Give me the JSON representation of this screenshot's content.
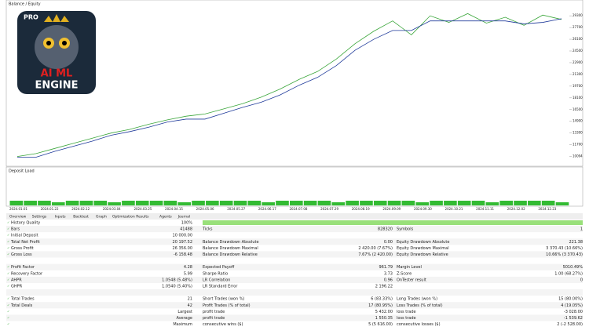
{
  "header": {
    "title": "Balance / Equity"
  },
  "logo": {
    "badge": "PRO",
    "line1": "AI ML",
    "line2": "ENGINE"
  },
  "chart": {
    "ylim": [
      9200,
      30600
    ],
    "yticks": [
      10094,
      11700,
      13300,
      14900,
      16500,
      18100,
      19700,
      21300,
      22900,
      24500,
      26100,
      27700,
      29300
    ],
    "balance": [
      10000,
      10000,
      10800,
      11500,
      12200,
      13000,
      13500,
      14100,
      14800,
      15200,
      15200,
      16000,
      16800,
      17500,
      18500,
      19800,
      20900,
      22500,
      24600,
      26100,
      27300,
      27300,
      28600,
      28600,
      28600,
      28600,
      28600,
      28200,
      28400,
      28900
    ],
    "equity": [
      10100,
      10500,
      11200,
      11900,
      12600,
      13300,
      13800,
      14500,
      15100,
      15600,
      15900,
      16600,
      17300,
      18200,
      19300,
      20600,
      21700,
      23400,
      25500,
      27200,
      28600,
      26700,
      29300,
      28400,
      29600,
      28300,
      29100,
      28000,
      29400,
      28800
    ],
    "deposit_load_title": "Deposit Load",
    "deposit_load": [
      3,
      3,
      3,
      2,
      3,
      3,
      3,
      2,
      3,
      3,
      3,
      3,
      2,
      3,
      3,
      3,
      3,
      3,
      2,
      3,
      3,
      3,
      3,
      2,
      3,
      3,
      3,
      3,
      3,
      2,
      3,
      3,
      3,
      3,
      2,
      3,
      3,
      3,
      3,
      2
    ],
    "dates": [
      "2024.01.01",
      "2024.01.22",
      "2024.02.12",
      "2024.03.04",
      "2024.03.25",
      "2024.04.15",
      "2024.05.06",
      "2024.05.27",
      "2024.06.17",
      "2024.07.08",
      "2024.07.29",
      "2024.08.19",
      "2024.09.09",
      "2024.09.30",
      "2024.10.21",
      "2024.11.11",
      "2024.12.02",
      "2024.12.23"
    ]
  },
  "tabs": [
    "Overview",
    "Settings",
    "Inputs",
    "Backtest",
    "Graph",
    "Optimization Results",
    "Agents",
    "Journal"
  ],
  "table": {
    "rows": [
      [
        "History Quality",
        "100%",
        "",
        "",
        "",
        ""
      ],
      [
        "Bars",
        "41488",
        "Ticks",
        "828320",
        "Symbols",
        "1"
      ],
      [
        "Initial Deposit",
        "10 000.00",
        "",
        "",
        "",
        ""
      ],
      [
        "Total Net Profit",
        "20 197.52",
        "Balance Drawdown Absolute",
        "0.00",
        "Equity Drawdown Absolute",
        "221.38"
      ],
      [
        "Gross Profit",
        "26 356.00",
        "Balance Drawdown Maximal",
        "2 420.00 (7.67%)",
        "Equity Drawdown Maximal",
        "3 370.43 (10.66%)"
      ],
      [
        "Gross Loss",
        "-6 158.48",
        "Balance Drawdown Relative",
        "7.67% (2 420.00)",
        "Equity Drawdown Relative",
        "10.66% (3 370.43)"
      ],
      [
        "",
        "",
        "",
        "",
        "",
        ""
      ],
      [
        "Profit Factor",
        "4.28",
        "Expected Payoff",
        "961.79",
        "Margin Level",
        "5010.49%"
      ],
      [
        "Recovery Factor",
        "5.99",
        "Sharpe Ratio",
        "3.73",
        "Z-Score",
        "1.00 (68.27%)"
      ],
      [
        "AHPR",
        "1.0548 (5.48%)",
        "LR Correlation",
        "0.96",
        "OnTester result",
        "0"
      ],
      [
        "GHPR",
        "1.0540 (5.40%)",
        "LR Standard Error",
        "2 196.22",
        "",
        ""
      ],
      [
        "",
        "",
        "",
        "",
        "",
        ""
      ],
      [
        "Total Trades",
        "21",
        "Short Trades (won %)",
        "6 (83.33%)",
        "Long Trades (won %)",
        "15 (80.00%)"
      ],
      [
        "Total Deals",
        "42",
        "Profit Trades (% of total)",
        "17 (80.95%)",
        "Loss Trades (% of total)",
        "4 (19.05%)"
      ],
      [
        "Largest",
        "",
        "profit trade",
        "5 432.00",
        "loss trade",
        "-3 028.00"
      ],
      [
        "Average",
        "",
        "profit trade",
        "1 550.35",
        "loss trade",
        "-1 539.62"
      ],
      [
        "Maximum",
        "",
        "consecutive wins ($)",
        "5 (5 616.00)",
        "consecutive losses ($)",
        "2 (-2 528.00)"
      ]
    ]
  }
}
